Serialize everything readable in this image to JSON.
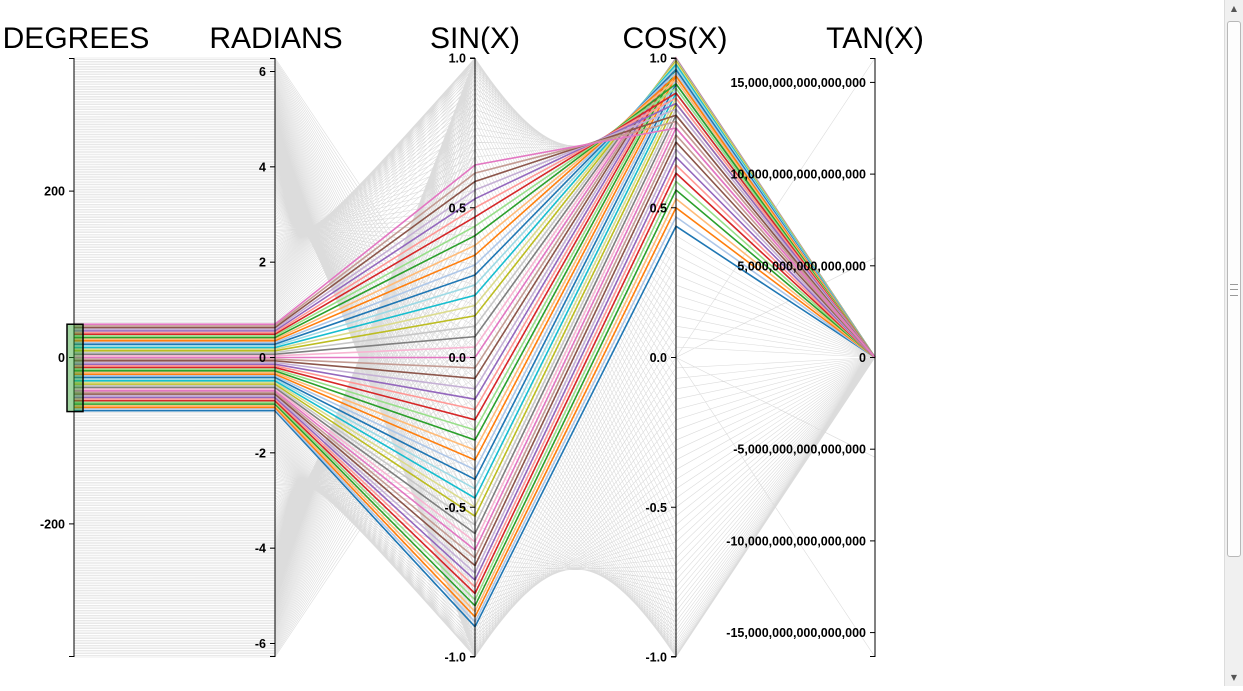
{
  "chart_data": {
    "type": "parallel-coordinates",
    "dimensions": [
      {
        "name": "DEGREES",
        "range": [
          -360,
          360
        ],
        "ticks": [
          -200,
          0,
          200
        ],
        "tick_labels": [
          "-200",
          "0",
          "200"
        ]
      },
      {
        "name": "RADIANS",
        "range": [
          -6.283,
          6.283
        ],
        "ticks": [
          -6,
          -4,
          -2,
          0,
          2,
          4,
          6
        ],
        "tick_labels": [
          "-6",
          "-4",
          "-2",
          "0",
          "2",
          "4",
          "6"
        ]
      },
      {
        "name": "SIN(X)",
        "range": [
          -1,
          1
        ],
        "ticks": [
          -1,
          -0.5,
          0,
          0.5,
          1
        ],
        "tick_labels": [
          "-1.0",
          "-0.5",
          "0.0",
          "0.5",
          "1.0"
        ]
      },
      {
        "name": "COS(X)",
        "range": [
          -1,
          1
        ],
        "ticks": [
          -1,
          -0.5,
          0,
          0.5,
          1
        ],
        "tick_labels": [
          "-1.0",
          "-0.5",
          "0.0",
          "0.5",
          "1.0"
        ]
      },
      {
        "name": "TAN(X)",
        "range": [
          -16331239353195370,
          16331239353195370
        ],
        "ticks": [
          -15000000000000000,
          -10000000000000000,
          -5000000000000000,
          0,
          5000000000000000,
          10000000000000000,
          15000000000000000
        ],
        "tick_labels": [
          "-15,000,000,000,000,000",
          "-10,000,000,000,000,000",
          "-5,000,000,000,000,000",
          "0",
          "5,000,000,000,000,000",
          "10,000,000,000,000,000",
          "15,000,000,000,000,000"
        ]
      }
    ],
    "data_rule": "degrees from -360 to 360; radians = degrees * pi / 180; sin, cos, tan of radians",
    "background_step_degrees": 2,
    "brush": {
      "dimension": "DEGREES",
      "extent": [
        -65,
        40
      ]
    },
    "highlight_step_degrees": 2,
    "palette": [
      "#1f77b4",
      "#aec7e8",
      "#ff7f0e",
      "#ffbb78",
      "#2ca02c",
      "#98df8a",
      "#d62728",
      "#ff9896",
      "#9467bd",
      "#c5b0d5",
      "#8c564b",
      "#c49c94",
      "#e377c2",
      "#f7b6d2",
      "#7f7f7f",
      "#c7c7c7",
      "#bcbd22",
      "#dbdb8d",
      "#17becf",
      "#9edae5"
    ],
    "background_line_color": "#dcdcdc",
    "brush_color": "#2ca02c"
  }
}
